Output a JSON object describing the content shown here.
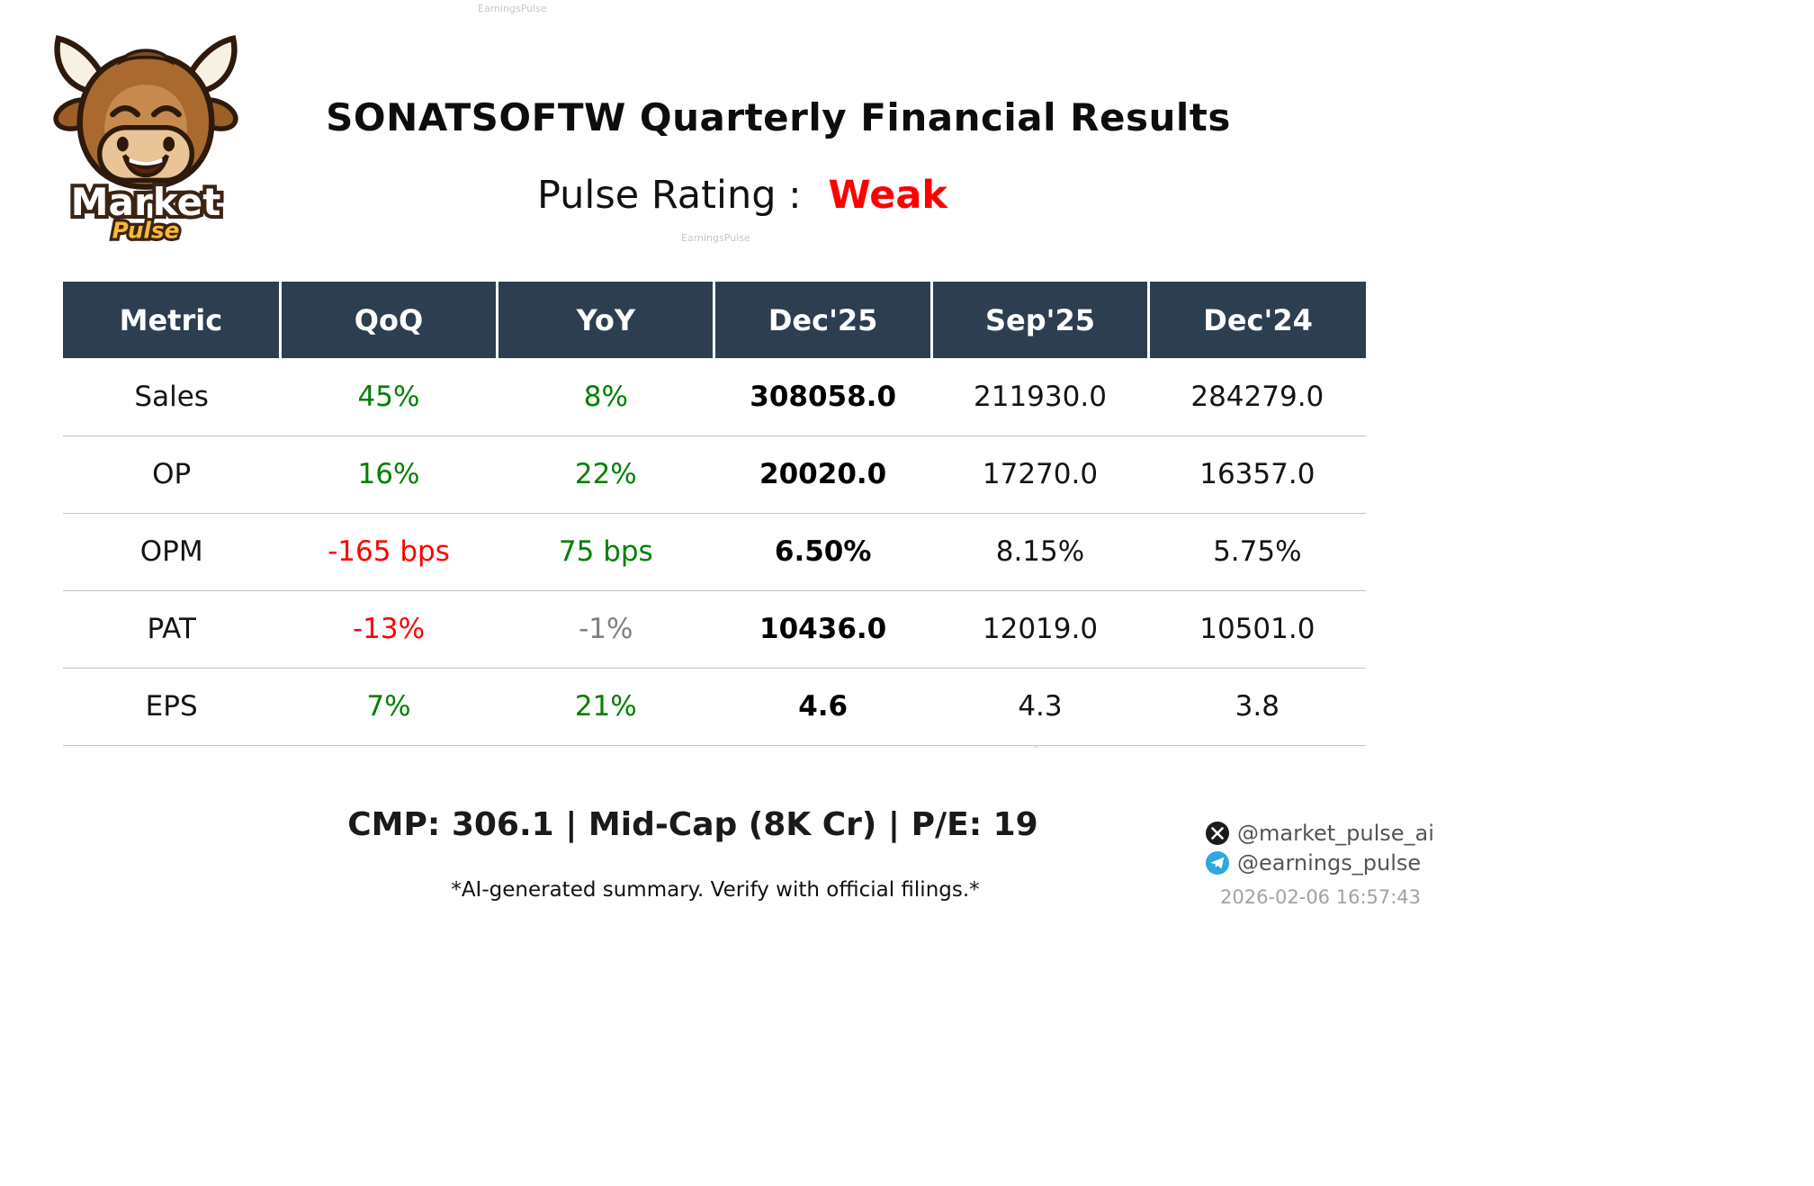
{
  "header": {
    "title": "SONATSOFTW Quarterly Financial Results",
    "rating_label": "Pulse Rating :",
    "rating_value": "Weak"
  },
  "logo": {
    "icon": "bull-mascot-icon",
    "line1": "Market",
    "line2": "Pulse"
  },
  "table": {
    "columns": [
      "Metric",
      "QoQ",
      "YoY",
      "Dec'25",
      "Sep'25",
      "Dec'24"
    ],
    "rows": [
      {
        "metric": "Sales",
        "cells": [
          {
            "text": "45%",
            "color": "green"
          },
          {
            "text": "8%",
            "color": "green"
          },
          {
            "text": "308058.0",
            "bold": true
          },
          {
            "text": "211930.0"
          },
          {
            "text": "284279.0"
          }
        ]
      },
      {
        "metric": "OP",
        "cells": [
          {
            "text": "16%",
            "color": "green"
          },
          {
            "text": "22%",
            "color": "green"
          },
          {
            "text": "20020.0",
            "bold": true
          },
          {
            "text": "17270.0"
          },
          {
            "text": "16357.0"
          }
        ]
      },
      {
        "metric": "OPM",
        "cells": [
          {
            "text": "-165 bps",
            "color": "red"
          },
          {
            "text": "75 bps",
            "color": "green"
          },
          {
            "text": "6.50%",
            "bold": true
          },
          {
            "text": "8.15%"
          },
          {
            "text": "5.75%"
          }
        ]
      },
      {
        "metric": "PAT",
        "cells": [
          {
            "text": "-13%",
            "color": "red"
          },
          {
            "text": "-1%",
            "color": "gray"
          },
          {
            "text": "10436.0",
            "bold": true
          },
          {
            "text": "12019.0"
          },
          {
            "text": "10501.0"
          }
        ]
      },
      {
        "metric": "EPS",
        "cells": [
          {
            "text": "7%",
            "color": "green"
          },
          {
            "text": "21%",
            "color": "green"
          },
          {
            "text": "4.6",
            "bold": true
          },
          {
            "text": "4.3"
          },
          {
            "text": "3.8"
          }
        ]
      }
    ]
  },
  "chart_data": {
    "type": "table",
    "title": "SONATSOFTW Quarterly Financial Results",
    "subtitle": "Pulse Rating : Weak",
    "columns": [
      "Metric",
      "QoQ",
      "YoY",
      "Dec'25",
      "Sep'25",
      "Dec'24"
    ],
    "rows": [
      [
        "Sales",
        "45%",
        "8%",
        "308058.0",
        "211930.0",
        "284279.0"
      ],
      [
        "OP",
        "16%",
        "22%",
        "20020.0",
        "17270.0",
        "16357.0"
      ],
      [
        "OPM",
        "-165 bps",
        "75 bps",
        "6.50%",
        "8.15%",
        "5.75%"
      ],
      [
        "PAT",
        "-13%",
        "-1%",
        "10436.0",
        "12019.0",
        "10501.0"
      ],
      [
        "EPS",
        "7%",
        "21%",
        "4.6",
        "4.3",
        "3.8"
      ]
    ]
  },
  "footer": {
    "cmp_line": "CMP: 306.1 | Mid-Cap (8K Cr) | P/E: 19",
    "disclaimer": "*AI-generated summary. Verify with official filings.*",
    "x_handle": "@market_pulse_ai",
    "telegram_handle": "@earnings_pulse",
    "timestamp": "2026-02-06 16:57:43"
  },
  "watermark": "EarningsPulse",
  "colors": {
    "positive": "#008000",
    "negative": "#ff0000",
    "neutral": "#808080",
    "rating_weak": "#ff0000",
    "table_header_bg": "#2c3e50",
    "telegram_blue": "#30a8dd"
  }
}
